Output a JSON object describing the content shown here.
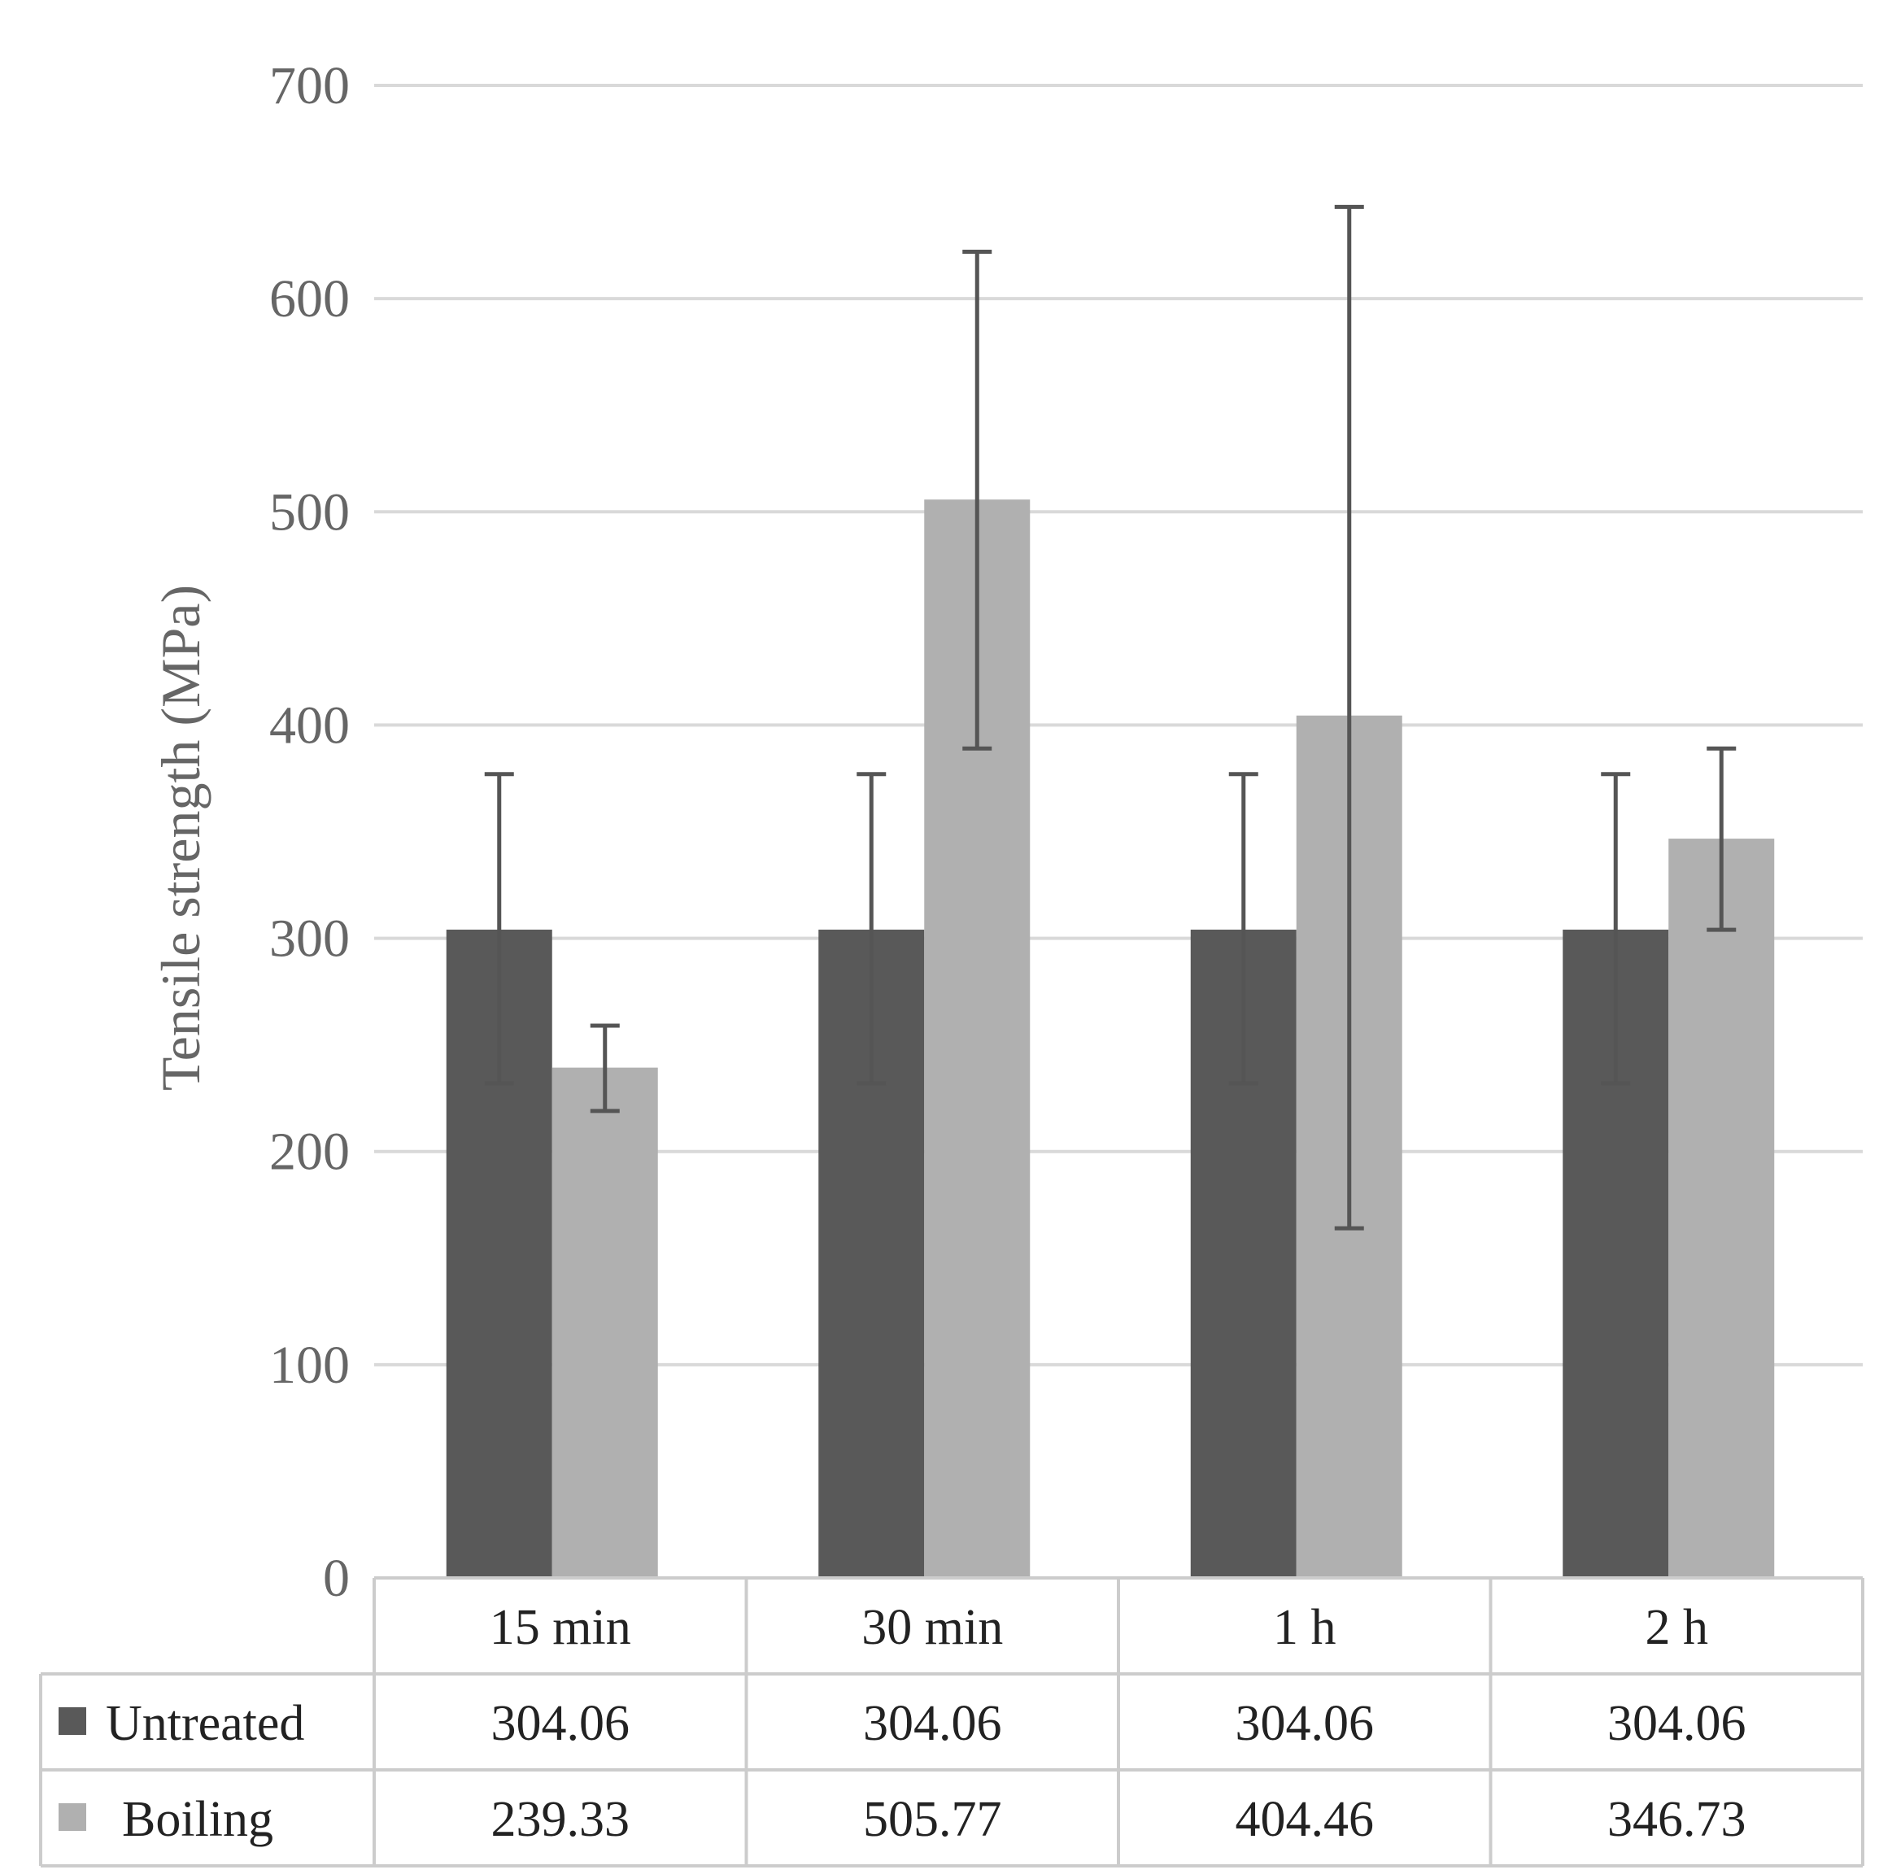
{
  "chart_data": {
    "type": "bar",
    "categories": [
      "15 min",
      "30 min",
      "1 h",
      "2 h"
    ],
    "series": [
      {
        "name": "Untreated",
        "color": "#595959",
        "values": [
          304.06,
          304.06,
          304.06,
          304.06
        ],
        "error_low": [
          232,
          232,
          232,
          232
        ],
        "error_high": [
          377,
          377,
          377,
          377
        ],
        "table_values": [
          "304.06",
          "304.06",
          "304.06",
          "304.06"
        ]
      },
      {
        "name": "Boiling",
        "color": "#b0b0b0",
        "values": [
          239.33,
          505.77,
          404.46,
          346.73
        ],
        "error_low": [
          219,
          389,
          164,
          304
        ],
        "error_high": [
          259,
          622,
          643,
          389
        ],
        "table_values": [
          "239.33",
          "505.77",
          "404.46",
          "346.73"
        ]
      }
    ],
    "ylabel": "Tensile strength (MPa)",
    "xlabel": "",
    "ylim": [
      0,
      700
    ],
    "yticks": [
      0,
      100,
      200,
      300,
      400,
      500,
      600,
      700
    ],
    "grid": true,
    "legend": "data table below chart"
  }
}
